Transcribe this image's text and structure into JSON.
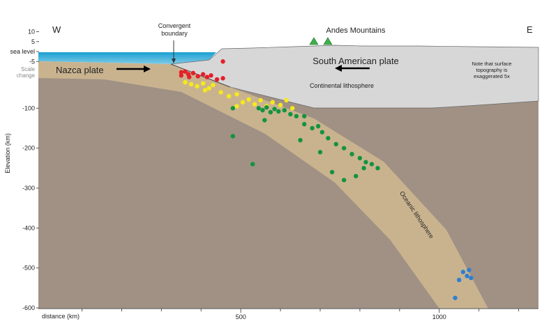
{
  "labels": {
    "west": "W",
    "east": "E",
    "convergent_boundary": [
      "Convergent",
      "boundary"
    ],
    "andes": "Andes Mountains",
    "south_american_plate": "South American plate",
    "nazca_plate": "Nazca plate",
    "continental_lithosphere": "Continental lithosphere",
    "oceanic_lithosphere": "Oceanic lithosphere",
    "note": [
      "Note that surface",
      "topography is",
      "exaggerated 5x"
    ],
    "scale_change": [
      "Scale",
      "change"
    ]
  },
  "axes": {
    "x_label": "distance (km)",
    "y_label": "Elevation (km)",
    "xlim": [
      -10,
      1250
    ],
    "xticks": [
      500,
      1000
    ],
    "xminorticks": [
      100,
      200,
      300,
      400,
      600,
      700,
      800,
      900,
      1100,
      1200
    ],
    "ylim": [
      -600,
      10
    ],
    "yticks": [
      10,
      5,
      {
        "value": 0,
        "label": "sea level"
      },
      -5,
      -100,
      -200,
      -300,
      -400,
      -500,
      -600
    ]
  },
  "earthquakes": [
    {
      "color": "#e4202a",
      "points": [
        [
          350,
          -10
        ],
        [
          360,
          -8
        ],
        [
          368,
          -15
        ],
        [
          380,
          -12
        ],
        [
          392,
          -20
        ],
        [
          405,
          -15
        ],
        [
          415,
          -22
        ],
        [
          425,
          -18
        ],
        [
          370,
          -22
        ],
        [
          440,
          -28
        ],
        [
          455,
          -25
        ],
        [
          350,
          -18
        ],
        [
          455,
          -5
        ]
      ]
    },
    {
      "color": "#f5ea1c",
      "points": [
        [
          360,
          -35
        ],
        [
          375,
          -40
        ],
        [
          390,
          -45
        ],
        [
          405,
          -38
        ],
        [
          420,
          -50
        ],
        [
          430,
          -42
        ],
        [
          450,
          -60
        ],
        [
          470,
          -70
        ],
        [
          490,
          -65
        ],
        [
          505,
          -85
        ],
        [
          520,
          -78
        ],
        [
          535,
          -90
        ],
        [
          550,
          -80
        ],
        [
          565,
          -95
        ],
        [
          580,
          -85
        ],
        [
          600,
          -92
        ],
        [
          615,
          -80
        ],
        [
          630,
          -100
        ],
        [
          490,
          -95
        ],
        [
          410,
          -55
        ]
      ]
    },
    {
      "color": "#14923f",
      "points": [
        [
          545,
          -100
        ],
        [
          555,
          -105
        ],
        [
          565,
          -98
        ],
        [
          575,
          -110
        ],
        [
          585,
          -102
        ],
        [
          595,
          -108
        ],
        [
          610,
          -105
        ],
        [
          625,
          -115
        ],
        [
          640,
          -120
        ],
        [
          660,
          -140
        ],
        [
          680,
          -150
        ],
        [
          695,
          -145
        ],
        [
          705,
          -160
        ],
        [
          720,
          -175
        ],
        [
          740,
          -190
        ],
        [
          760,
          -200
        ],
        [
          780,
          -215
        ],
        [
          800,
          -225
        ],
        [
          815,
          -235
        ],
        [
          830,
          -240
        ],
        [
          845,
          -250
        ],
        [
          810,
          -250
        ],
        [
          790,
          -270
        ],
        [
          760,
          -280
        ],
        [
          730,
          -260
        ],
        [
          700,
          -210
        ],
        [
          650,
          -180
        ],
        [
          560,
          -130
        ],
        [
          480,
          -100
        ],
        [
          480,
          -170
        ],
        [
          530,
          -240
        ],
        [
          660,
          -120
        ]
      ]
    },
    {
      "color": "#2f7fd0",
      "points": [
        [
          1060,
          -510
        ],
        [
          1070,
          -520
        ],
        [
          1075,
          -505
        ],
        [
          1080,
          -525
        ],
        [
          1050,
          -530
        ],
        [
          1040,
          -575
        ]
      ]
    }
  ]
}
